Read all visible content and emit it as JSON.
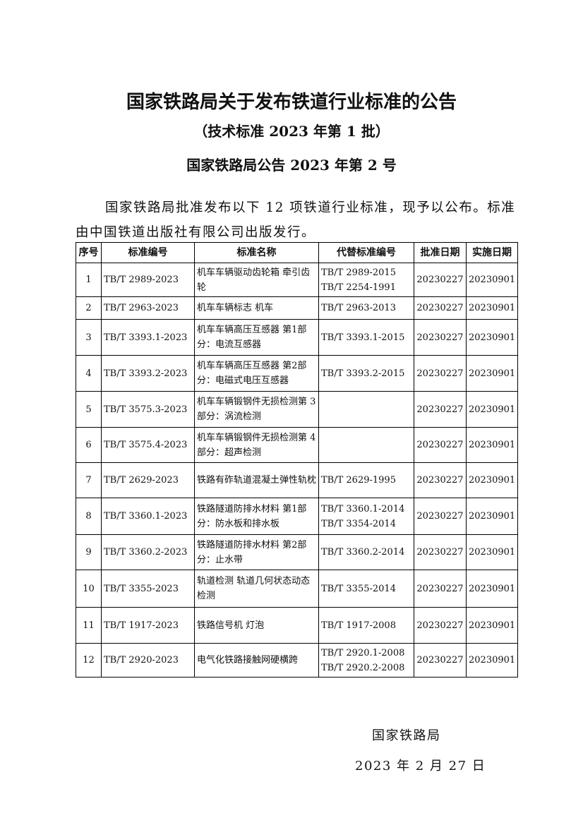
{
  "title": "国家铁路局关于发布铁道行业标准的公告",
  "subtitle": "（技术标准 2023 年第 1 批）",
  "notice_no": "国家铁路局公告 2023 年第 2 号",
  "paragraph": "国家铁路局批准发布以下 12 项铁道行业标准，现予以公布。标准由中国铁道出版社有限公司出版发行。",
  "table": {
    "headers": [
      "序号",
      "标准编号",
      "标准名称",
      "代替标准编号",
      "批准日期",
      "实施日期"
    ],
    "rows": [
      {
        "no": "1",
        "code": "TB/T 2989-2023",
        "name": "机车车辆驱动齿轮箱 牵引齿轮",
        "replaces": [
          "TB/T 2989-2015",
          "TB/T 2254-1991"
        ],
        "approved": "20230227",
        "effective": "20230901"
      },
      {
        "no": "2",
        "code": "TB/T 2963-2023",
        "name": "机车车辆标志 机车",
        "replaces": [
          "TB/T 2963-2013"
        ],
        "approved": "20230227",
        "effective": "20230901"
      },
      {
        "no": "3",
        "code": "TB/T 3393.1-2023",
        "name": "机车车辆高压互感器 第1部分：电流互感器",
        "replaces": [
          "TB/T 3393.1-2015"
        ],
        "approved": "20230227",
        "effective": "20230901"
      },
      {
        "no": "4",
        "code": "TB/T 3393.2-2023",
        "name": "机车车辆高压互感器 第2部分：电磁式电压互感器",
        "replaces": [
          "TB/T 3393.2-2015"
        ],
        "approved": "20230227",
        "effective": "20230901"
      },
      {
        "no": "5",
        "code": "TB/T 3575.3-2023",
        "name": "机车车辆锻钢件无损检测第 3 部分：涡流检测",
        "replaces": [],
        "approved": "20230227",
        "effective": "20230901"
      },
      {
        "no": "6",
        "code": "TB/T 3575.4-2023",
        "name": "机车车辆锻钢件无损检测第 4 部分：超声检测",
        "replaces": [],
        "approved": "20230227",
        "effective": "20230901"
      },
      {
        "no": "7",
        "code": "TB/T 2629-2023",
        "name": "铁路有砟轨道混凝土弹性轨枕",
        "replaces": [
          "TB/T 2629-1995"
        ],
        "approved": "20230227",
        "effective": "20230901"
      },
      {
        "no": "8",
        "code": "TB/T 3360.1-2023",
        "name": "铁路隧道防排水材料 第1部分：防水板和排水板",
        "replaces": [
          "TB/T 3360.1-2014",
          "TB/T 3354-2014"
        ],
        "approved": "20230227",
        "effective": "20230901"
      },
      {
        "no": "9",
        "code": "TB/T 3360.2-2023",
        "name": "铁路隧道防排水材料 第2部分：止水带",
        "replaces": [
          "TB/T 3360.2-2014"
        ],
        "approved": "20230227",
        "effective": "20230901"
      },
      {
        "no": "10",
        "code": "TB/T 3355-2023",
        "name": "轨道检测 轨道几何状态动态检测",
        "replaces": [
          "TB/T 3355-2014"
        ],
        "approved": "20230227",
        "effective": "20230901"
      },
      {
        "no": "11",
        "code": "TB/T 1917-2023",
        "name": "铁路信号机 灯泡",
        "replaces": [
          "TB/T 1917-2008"
        ],
        "approved": "20230227",
        "effective": "20230901"
      },
      {
        "no": "12",
        "code": "TB/T 2920-2023",
        "name": "电气化铁路接触网硬横跨",
        "replaces": [
          "TB/T 2920.1-2008",
          "TB/T 2920.2-2008"
        ],
        "approved": "20230227",
        "effective": "20230901"
      }
    ]
  },
  "signature": "国家铁路局",
  "date": "2023 年 2 月 27 日"
}
